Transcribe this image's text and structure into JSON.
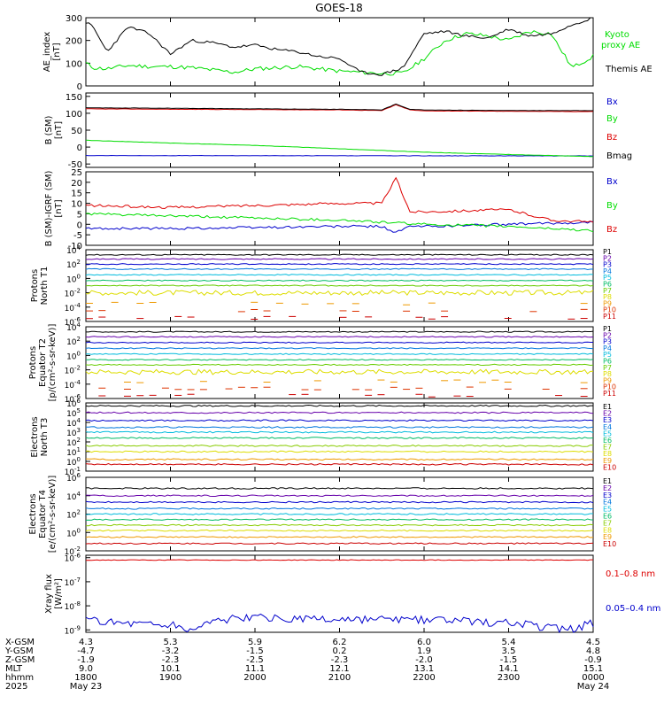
{
  "title": "GOES-18",
  "colors": {
    "black": "#000000",
    "blue": "#0000cc",
    "green": "#00dd00",
    "red": "#dd0000",
    "ae_kyoto": "#00dd00",
    "xray_long": "#dd0000",
    "xray_short": "#0000cc"
  },
  "chart_data": [
    {
      "type": "line",
      "panel": "ae",
      "ylabel": "AE index [nT]",
      "yticks": [
        "300",
        "200",
        "100",
        "0"
      ],
      "ylim": [
        0,
        300
      ],
      "series": [
        {
          "name": "Kyoto proxy AE",
          "color": "#00dd00",
          "x": [
            1800,
            1805,
            1815,
            1830,
            1845,
            1900,
            1915,
            1930,
            1945,
            2000,
            2015,
            2030,
            2045,
            2100,
            2115,
            2130,
            2145,
            2200,
            2215,
            2230,
            2245,
            2300,
            2315,
            2330,
            2345,
            2400
          ],
          "values": [
            100,
            80,
            75,
            90,
            85,
            85,
            80,
            70,
            60,
            75,
            80,
            85,
            75,
            65,
            60,
            55,
            55,
            120,
            200,
            230,
            220,
            200,
            240,
            230,
            80,
            130
          ]
        },
        {
          "name": "Themis AE",
          "color": "#000000",
          "x": [
            1800,
            1805,
            1815,
            1830,
            1845,
            1900,
            1915,
            1930,
            1945,
            2000,
            2015,
            2030,
            2045,
            2100,
            2115,
            2130,
            2145,
            2200,
            2215,
            2230,
            2245,
            2300,
            2315,
            2330,
            2345,
            2400
          ],
          "values": [
            280,
            260,
            150,
            260,
            230,
            140,
            200,
            190,
            170,
            180,
            160,
            150,
            130,
            120,
            60,
            50,
            80,
            230,
            240,
            220,
            210,
            250,
            220,
            230,
            270,
            300
          ]
        }
      ],
      "legend": [
        "Kyoto proxy AE",
        "Themis AE"
      ]
    },
    {
      "type": "line",
      "panel": "b_sm",
      "ylabel": "B (SM) [nT]",
      "yticks": [
        "150",
        "100",
        "50",
        "0",
        "-50"
      ],
      "ylim": [
        -60,
        160
      ],
      "series": [
        {
          "name": "Bx",
          "color": "#0000cc",
          "x": [
            1800,
            2400
          ],
          "values": [
            -25,
            -26
          ]
        },
        {
          "name": "By",
          "color": "#00dd00",
          "x": [
            1800,
            1900,
            2000,
            2100,
            2200,
            2300,
            2400
          ],
          "values": [
            20,
            12,
            5,
            -5,
            -15,
            -22,
            -28
          ]
        },
        {
          "name": "Bz",
          "color": "#dd0000",
          "x": [
            1800,
            1900,
            2000,
            2100,
            2130,
            2140,
            2150,
            2200,
            2300,
            2400
          ],
          "values": [
            113,
            112,
            111,
            110,
            108,
            125,
            110,
            107,
            106,
            105
          ]
        },
        {
          "name": "Bmag",
          "color": "#000000",
          "x": [
            1800,
            1900,
            2000,
            2100,
            2130,
            2140,
            2150,
            2200,
            2300,
            2400
          ],
          "values": [
            116,
            115,
            113,
            112,
            110,
            127,
            112,
            110,
            108,
            108
          ]
        }
      ],
      "legend": [
        "Bx",
        "By",
        "Bz",
        "Bmag"
      ]
    },
    {
      "type": "line",
      "panel": "b_igrf",
      "ylabel": "B (SM)-IGRF (SM) [nT]",
      "yticks": [
        "25",
        "20",
        "15",
        "10",
        "5",
        "0",
        "-5",
        "-10"
      ],
      "ylim": [
        -10,
        25
      ],
      "series": [
        {
          "name": "Bx",
          "color": "#0000cc",
          "x": [
            1800,
            1900,
            2000,
            2100,
            2130,
            2140,
            2150,
            2200,
            2300,
            2400
          ],
          "values": [
            -2,
            -2,
            -1.5,
            -1,
            -1,
            -4,
            -1,
            -1,
            0,
            1
          ]
        },
        {
          "name": "By",
          "color": "#00dd00",
          "x": [
            1800,
            1900,
            2000,
            2100,
            2200,
            2300,
            2400
          ],
          "values": [
            5,
            4,
            3,
            2,
            0,
            -1,
            -3
          ]
        },
        {
          "name": "Bz",
          "color": "#dd0000",
          "x": [
            1800,
            1900,
            2000,
            2100,
            2130,
            2140,
            2150,
            2200,
            2300,
            2330,
            2400
          ],
          "values": [
            9,
            8,
            9,
            10,
            10,
            22,
            6,
            6,
            7,
            2,
            1
          ]
        }
      ],
      "legend": [
        "Bx",
        "By",
        "Bz"
      ]
    },
    {
      "type": "line",
      "panel": "protons_t1",
      "ylabel": "Protons North T1",
      "yticks": [
        "10^4",
        "10^2",
        "10^0",
        "10^-2",
        "10^-4",
        "10^-6"
      ],
      "ylim": [
        -6,
        4
      ],
      "series_log10": [
        3.3,
        2.7,
        2.0,
        1.3,
        0.5,
        -0.3,
        -1.0,
        -2.0,
        -3.5,
        -4.5,
        -5.5
      ],
      "legend": [
        "P1",
        "P2",
        "P3",
        "P4",
        "P5",
        "P6",
        "P7",
        "P8",
        "P9",
        "P10",
        "P11"
      ]
    },
    {
      "type": "line",
      "panel": "protons_t2",
      "ylabel": "Protons Equator T2 [p/(cm^2-s-sr-keV)]",
      "yticks": [
        "10^4",
        "10^2",
        "10^0",
        "10^-2",
        "10^-4",
        "10^-6"
      ],
      "ylim": [
        -6,
        4
      ],
      "series_log10": [
        3.3,
        2.6,
        1.8,
        1.0,
        0.2,
        -0.6,
        -1.3,
        -2.3,
        -3.6,
        -4.6,
        -5.6
      ],
      "legend": [
        "P1",
        "P2",
        "P3",
        "P4",
        "P5",
        "P6",
        "P7",
        "P8",
        "P9",
        "P10",
        "P11"
      ]
    },
    {
      "type": "line",
      "panel": "electrons_t3",
      "ylabel": "Electrons North T3",
      "yticks": [
        "10^6",
        "10^5",
        "10^4",
        "10^3",
        "10^2",
        "10^1",
        "10^0",
        "10^-1"
      ],
      "ylim": [
        -1,
        6
      ],
      "series_log10": [
        5.7,
        5.0,
        4.2,
        3.5,
        3.0,
        2.4,
        1.6,
        1.0,
        0.2,
        -0.3
      ],
      "legend": [
        "E1",
        "E2",
        "E3",
        "E4",
        "E5",
        "E6",
        "E7",
        "E8",
        "E9",
        "E10"
      ]
    },
    {
      "type": "line",
      "panel": "electrons_t4",
      "ylabel": "Electrons Equator T4 [e/(cm^2-s-sr-keV)]",
      "yticks": [
        "10^6",
        "10^4",
        "10^2",
        "10^0",
        "10^-2"
      ],
      "ylim": [
        -2,
        6
      ],
      "series_log10": [
        4.8,
        4.0,
        3.3,
        2.6,
        2.0,
        1.4,
        0.8,
        0.2,
        -0.5,
        -1.2
      ],
      "legend": [
        "E1",
        "E2",
        "E3",
        "E4",
        "E5",
        "E6",
        "E7",
        "E8",
        "E9",
        "E10"
      ]
    },
    {
      "type": "line",
      "panel": "xray",
      "ylabel": "Xray flux [W/m^2]",
      "yticks": [
        "10^-6",
        "10^-7",
        "10^-8",
        "10^-9"
      ],
      "ylim": [
        -9.1,
        -5.9
      ],
      "series": [
        {
          "name": "0.1-0.8 nm",
          "color": "#dd0000",
          "x": [
            1800,
            2400
          ],
          "values": [
            -6.1,
            -6.1
          ]
        },
        {
          "name": "0.05-0.4 nm",
          "color": "#0000cc",
          "x": [
            1800,
            1830,
            1900,
            1915,
            1930,
            2000,
            2100,
            2200,
            2300,
            2330,
            2345,
            2400
          ],
          "values": [
            -8.6,
            -8.7,
            -8.8,
            -9.0,
            -8.6,
            -8.5,
            -8.6,
            -8.6,
            -8.7,
            -8.9,
            -9.0,
            -8.7
          ]
        }
      ],
      "legend": [
        "0.1-0.8 nm",
        "0.05-0.4 nm"
      ]
    }
  ],
  "ephemeris": {
    "labels": [
      "X-GSM",
      "Y-GSM",
      "Z-GSM",
      "MLT",
      "hhmm",
      "2025"
    ],
    "columns": [
      {
        "x": "4.3",
        "y": "-4.7",
        "z": "-1.9",
        "mlt": "9.0",
        "hhmm": "1800",
        "date": "May 23"
      },
      {
        "x": "5.3",
        "y": "-3.2",
        "z": "-2.3",
        "mlt": "10.1",
        "hhmm": "1900",
        "date": ""
      },
      {
        "x": "5.9",
        "y": "-1.5",
        "z": "-2.5",
        "mlt": "11.1",
        "hhmm": "2000",
        "date": ""
      },
      {
        "x": "6.2",
        "y": "0.2",
        "z": "-2.3",
        "mlt": "12.1",
        "hhmm": "2100",
        "date": ""
      },
      {
        "x": "6.0",
        "y": "1.9",
        "z": "-2.0",
        "mlt": "13.1",
        "hhmm": "2200",
        "date": ""
      },
      {
        "x": "5.4",
        "y": "3.5",
        "z": "-1.5",
        "mlt": "14.1",
        "hhmm": "2300",
        "date": ""
      },
      {
        "x": "4.5",
        "y": "4.8",
        "z": "-0.9",
        "mlt": "15.1",
        "hhmm": "0000",
        "date": "May 24"
      }
    ]
  }
}
